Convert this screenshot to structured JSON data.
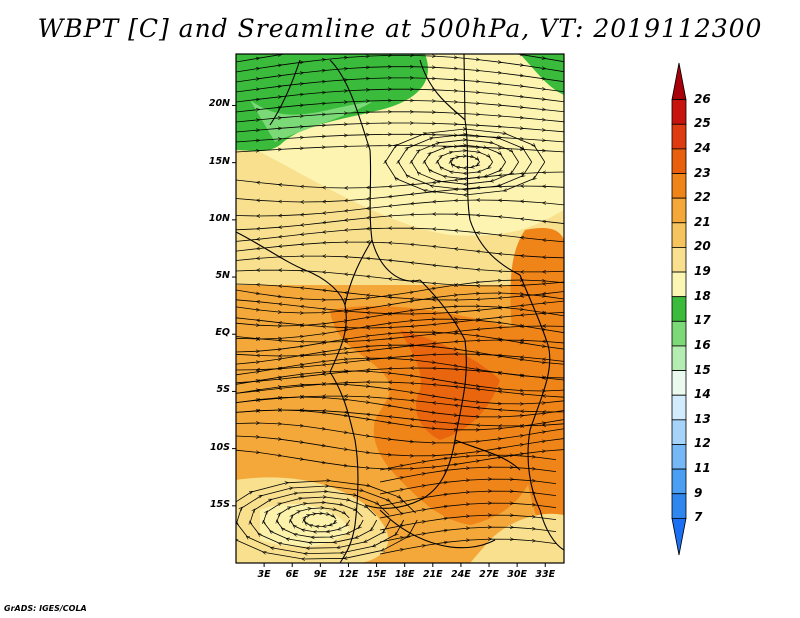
{
  "title": "WBPT [C] and Sreamline at 500hPa, VT: 2019112300",
  "credit": "GrADS: IGES/COLA",
  "map": {
    "lat_range": [
      -20,
      24.5
    ],
    "lon_range": [
      0,
      35
    ],
    "lat_labels": [
      "20N",
      "15N",
      "10N",
      "5N",
      "EQ",
      "5S",
      "10S",
      "15S"
    ],
    "lat_values": [
      20,
      15,
      10,
      5,
      0,
      -5,
      -10,
      -15
    ],
    "lon_labels": [
      "3E",
      "6E",
      "9E",
      "12E",
      "15E",
      "18E",
      "21E",
      "24E",
      "27E",
      "30E",
      "33E"
    ],
    "lon_values": [
      3,
      6,
      9,
      12,
      15,
      18,
      21,
      24,
      27,
      30,
      33
    ]
  },
  "colorbar": {
    "labels": [
      "7",
      "9",
      "11",
      "12",
      "13",
      "14",
      "15",
      "16",
      "17",
      "18",
      "19",
      "20",
      "21",
      "22",
      "23",
      "24",
      "25",
      "26"
    ],
    "colors": [
      "#1b6ff2",
      "#2f86ee",
      "#4a9ff2",
      "#76b7f6",
      "#a6d3fa",
      "#d2ecfd",
      "#eafaee",
      "#b4ecb2",
      "#7cd977",
      "#3bbb3b",
      "#fcf6b4",
      "#f8e08e",
      "#f6c45e",
      "#f4a83a",
      "#ef8419",
      "#e8600d",
      "#de3b12",
      "#c8140f",
      "#a8000a"
    ]
  }
}
